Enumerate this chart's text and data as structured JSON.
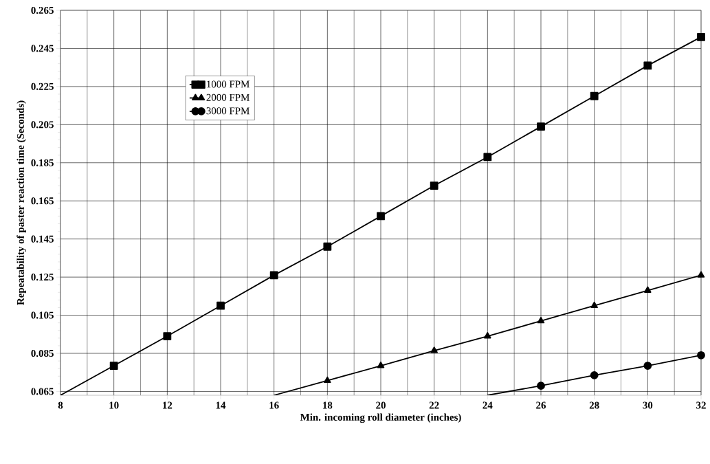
{
  "chart_data": {
    "type": "line",
    "xlabel": "Min. incoming roll diameter (inches)",
    "ylabel": "Repeatability of paster reaction time (Seconds)",
    "series": [
      {
        "name": "1000 FPM",
        "color": "#000000",
        "marker": "square",
        "x": [
          8,
          10,
          12,
          14,
          16,
          18,
          20,
          22,
          24,
          26,
          28,
          30,
          32
        ],
        "values": [
          0.063,
          0.0785,
          0.094,
          0.11,
          0.126,
          0.141,
          0.157,
          0.173,
          0.188,
          0.204,
          0.22,
          0.236,
          0.251
        ]
      },
      {
        "name": "2000 FPM",
        "color": "#000000",
        "marker": "triangle",
        "x": [
          16,
          18,
          20,
          22,
          24,
          26,
          28,
          30,
          32
        ],
        "values": [
          0.063,
          0.0707,
          0.0785,
          0.0864,
          0.094,
          0.102,
          0.11,
          0.118,
          0.126
        ]
      },
      {
        "name": "3000 FPM",
        "color": "#000000",
        "marker": "circle",
        "x": [
          24,
          26,
          28,
          30,
          32
        ],
        "values": [
          0.063,
          0.068,
          0.0735,
          0.0785,
          0.084
        ]
      }
    ],
    "xlim": [
      8,
      32
    ],
    "ylim": [
      0.063,
      0.265
    ],
    "xticks": [
      8,
      10,
      12,
      14,
      16,
      18,
      20,
      22,
      24,
      26,
      28,
      30,
      32
    ],
    "yticks": [
      0.065,
      0.085,
      0.105,
      0.125,
      0.145,
      0.165,
      0.185,
      0.205,
      0.225,
      0.245,
      0.265
    ],
    "grid": true,
    "legend": "top left",
    "line_style": "solid"
  }
}
